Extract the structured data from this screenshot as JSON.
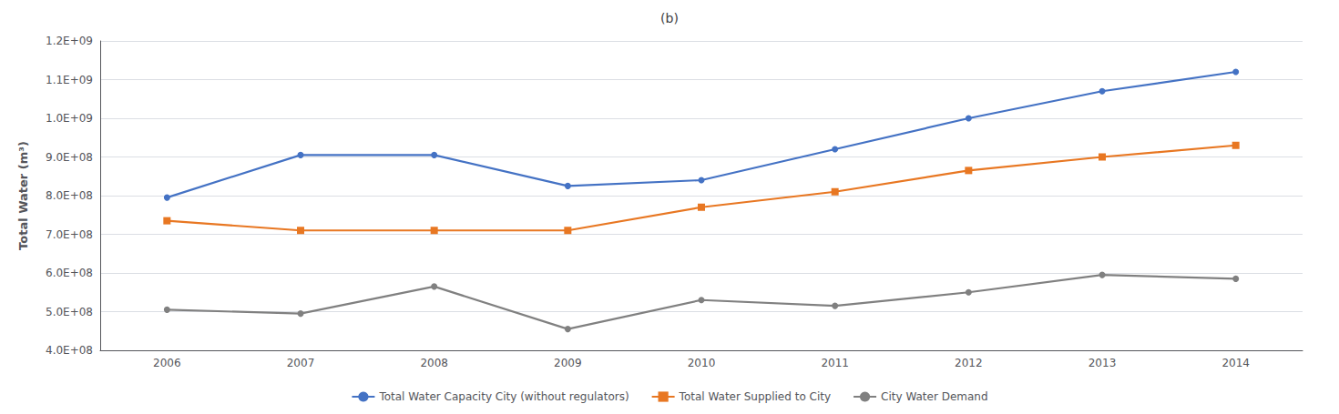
{
  "chart_data": {
    "type": "line",
    "title": "(b)",
    "ylabel": "Total Water (m³)",
    "categories": [
      "2006",
      "2007",
      "2008",
      "2009",
      "2010",
      "2011",
      "2012",
      "2013",
      "2014"
    ],
    "series": [
      {
        "name": "Total Water Capacity City (without regulators)",
        "color": "#4472C4",
        "marker": "circle",
        "values": [
          795000000.0,
          905000000.0,
          905000000.0,
          825000000.0,
          840000000.0,
          920000000.0,
          1000000000.0,
          1070000000.0,
          1120000000.0
        ]
      },
      {
        "name": "Total Water Supplied to City",
        "color": "#E87722",
        "marker": "square",
        "values": [
          735000000.0,
          710000000.0,
          710000000.0,
          710000000.0,
          770000000.0,
          810000000.0,
          865000000.0,
          900000000.0,
          930000000.0
        ]
      },
      {
        "name": "City Water Demand",
        "color": "#808080",
        "marker": "circle",
        "values": [
          505000000.0,
          495000000.0,
          565000000.0,
          455000000.0,
          530000000.0,
          515000000.0,
          550000000.0,
          595000000.0,
          585000000.0
        ]
      }
    ],
    "ylim": [
      400000000,
      1200000000
    ],
    "yticks": [
      {
        "value": 400000000,
        "label": "4.0E+08"
      },
      {
        "value": 500000000,
        "label": "5.0E+08"
      },
      {
        "value": 600000000,
        "label": "6.0E+08"
      },
      {
        "value": 700000000,
        "label": "7.0E+08"
      },
      {
        "value": 800000000,
        "label": "8.0E+08"
      },
      {
        "value": 900000000,
        "label": "9.0E+08"
      },
      {
        "value": 1000000000,
        "label": "1.0E+09"
      },
      {
        "value": 1100000000,
        "label": "1.1E+09"
      },
      {
        "value": 1200000000,
        "label": "1.2E+09"
      }
    ],
    "grid": true,
    "legend": "bottom"
  }
}
